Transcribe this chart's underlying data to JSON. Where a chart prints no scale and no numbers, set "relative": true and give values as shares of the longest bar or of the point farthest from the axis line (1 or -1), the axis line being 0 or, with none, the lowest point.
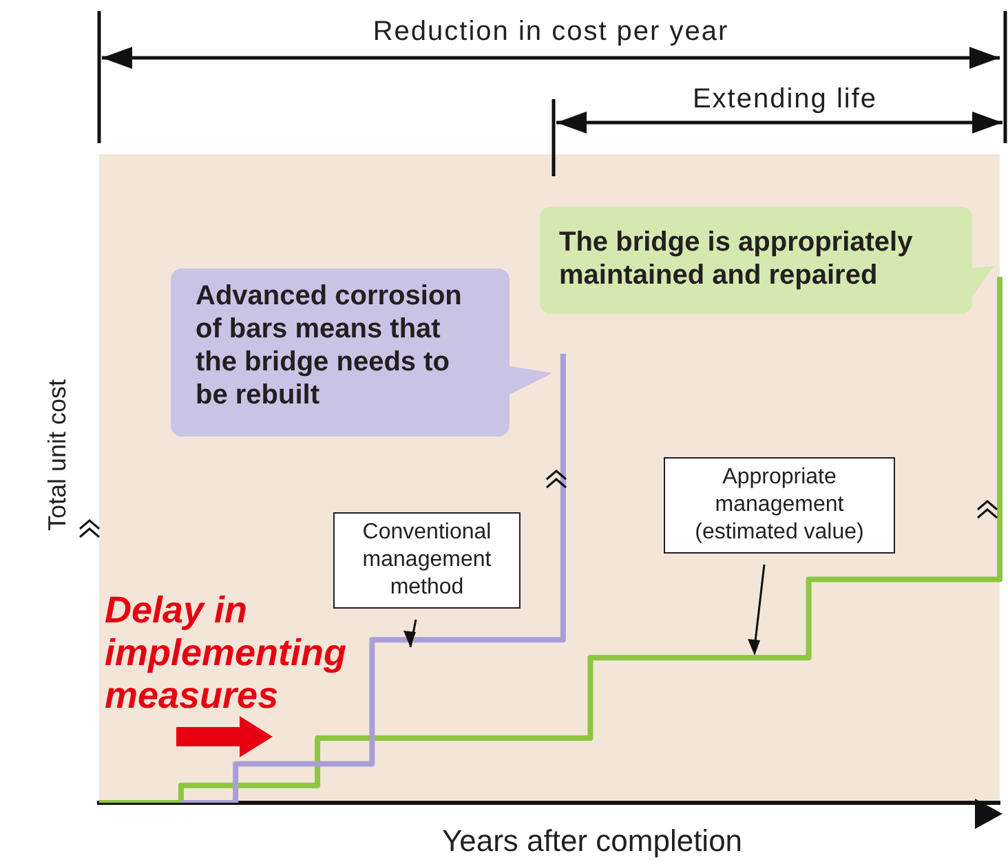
{
  "chart_data": {
    "type": "step",
    "relative": true,
    "xlabel": "Years after completion",
    "ylabel": "Total unit cost",
    "categories": [
      null,
      null,
      null,
      null,
      null,
      null,
      null,
      null,
      null,
      null,
      null,
      null,
      null,
      null,
      null,
      null,
      null,
      null,
      null,
      null,
      null,
      null,
      null,
      null,
      null,
      null,
      null,
      null,
      null,
      null,
      null,
      null,
      null,
      null
    ],
    "series": [
      {
        "name": "Conventional management method",
        "color": "#a99fd6",
        "values": [
          null,
          null,
          null,
          0,
          0,
          0.074,
          0.074,
          0.074,
          0.074,
          0.074,
          0.31,
          0.31,
          0.31,
          0.31,
          0.31,
          0.31,
          0.31,
          0.854,
          null,
          null,
          null,
          null,
          null,
          null,
          null,
          null,
          null,
          null,
          null,
          null,
          null,
          null,
          null,
          null
        ]
      },
      {
        "name": "Appropriate management (estimated value)",
        "color": "#8dc63f",
        "values": [
          0,
          0,
          0,
          0.033,
          0.033,
          0.033,
          0.033,
          0.033,
          0.123,
          0.123,
          0.123,
          0.123,
          0.123,
          0.123,
          0.123,
          0.123,
          0.123,
          0.123,
          0.276,
          0.276,
          0.276,
          0.276,
          0.276,
          0.276,
          0.276,
          0.276,
          0.425,
          0.425,
          0.425,
          0.425,
          0.425,
          0.425,
          0.425,
          1
        ]
      }
    ],
    "annotations": [
      "Reduction in cost per year",
      "Extending life",
      "Advanced corrosion of bars means that the bridge needs to be rebuilt",
      "The bridge is appropriately maintained and repaired",
      "Delay in implementing measures"
    ]
  }
}
